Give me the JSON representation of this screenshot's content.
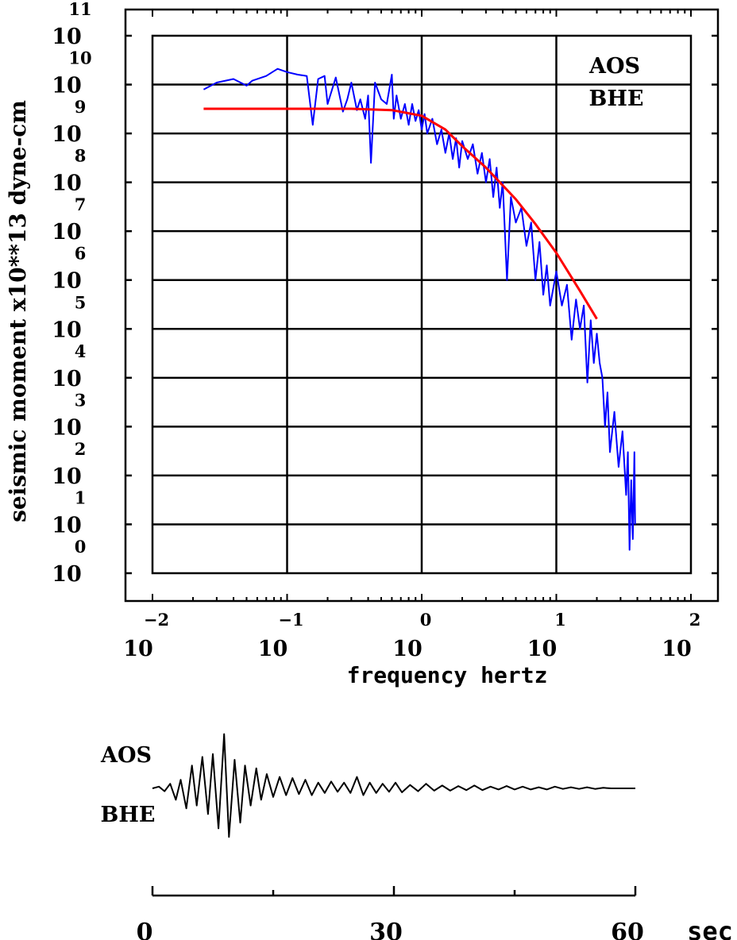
{
  "chart_data": [
    {
      "type": "line",
      "title": "",
      "xlabel": "frequency  hertz",
      "ylabel": "seismic moment x10**13 dyne-cm",
      "x_scale": "log",
      "y_scale": "log",
      "xlim": [
        0.01,
        100
      ],
      "ylim": [
        1,
        100000000000
      ],
      "x_ticks": [
        {
          "base": "10",
          "exp": "−2"
        },
        {
          "base": "10",
          "exp": "−1"
        },
        {
          "base": "10",
          "exp": "0"
        },
        {
          "base": "10",
          "exp": "1"
        },
        {
          "base": "10",
          "exp": "2"
        }
      ],
      "y_ticks": [
        {
          "base": "10",
          "exp": "0"
        },
        {
          "base": "10",
          "exp": "1"
        },
        {
          "base": "10",
          "exp": "2"
        },
        {
          "base": "10",
          "exp": "3"
        },
        {
          "base": "10",
          "exp": "4"
        },
        {
          "base": "10",
          "exp": "5"
        },
        {
          "base": "10",
          "exp": "6"
        },
        {
          "base": "10",
          "exp": "7"
        },
        {
          "base": "10",
          "exp": "8"
        },
        {
          "base": "10",
          "exp": "9"
        },
        {
          "base": "10",
          "exp": "10"
        },
        {
          "base": "10",
          "exp": "11"
        }
      ],
      "grid": true,
      "annotations": [
        "AOS",
        "BHE"
      ],
      "series": [
        {
          "color": "#0000ff",
          "points": [
            [
              0.024,
              7900000000.0
            ],
            [
              0.03,
              11000000000.0
            ],
            [
              0.04,
              13000000000.0
            ],
            [
              0.05,
              9500000000.0
            ],
            [
              0.055,
              12000000000.0
            ],
            [
              0.07,
              15000000000.0
            ],
            [
              0.085,
              21000000000.0
            ],
            [
              0.1,
              18000000000.0
            ],
            [
              0.12,
              16000000000.0
            ],
            [
              0.14,
              15000000000.0
            ],
            [
              0.155,
              1500000000.0
            ],
            [
              0.17,
              13000000000.0
            ],
            [
              0.19,
              15000000000.0
            ],
            [
              0.2,
              4000000000.0
            ],
            [
              0.23,
              14000000000.0
            ],
            [
              0.26,
              2800000000.0
            ],
            [
              0.28,
              5000000000.0
            ],
            [
              0.3,
              11000000000.0
            ],
            [
              0.33,
              3000000000.0
            ],
            [
              0.35,
              5000000000.0
            ],
            [
              0.38,
              2000000000.0
            ],
            [
              0.4,
              6000000000.0
            ],
            [
              0.42,
              250000000.0
            ],
            [
              0.45,
              11000000000.0
            ],
            [
              0.5,
              5000000000.0
            ],
            [
              0.55,
              4000000000.0
            ],
            [
              0.6,
              16000000000.0
            ],
            [
              0.62,
              2000000000.0
            ],
            [
              0.65,
              6000000000.0
            ],
            [
              0.7,
              2000000000.0
            ],
            [
              0.75,
              4000000000.0
            ],
            [
              0.8,
              1500000000.0
            ],
            [
              0.85,
              4000000000.0
            ],
            [
              0.9,
              1800000000.0
            ],
            [
              0.95,
              3000000000.0
            ],
            [
              1.0,
              1200000000.0
            ],
            [
              1.05,
              2500000000.0
            ],
            [
              1.1,
              1000000000.0
            ],
            [
              1.2,
              2000000000.0
            ],
            [
              1.3,
              600000000.0
            ],
            [
              1.4,
              1200000000.0
            ],
            [
              1.5,
              400000000.0
            ],
            [
              1.6,
              1000000000.0
            ],
            [
              1.7,
              300000000.0
            ],
            [
              1.8,
              800000000.0
            ],
            [
              1.9,
              200000000.0
            ],
            [
              2.0,
              700000000.0
            ],
            [
              2.2,
              300000000.0
            ],
            [
              2.4,
              600000000.0
            ],
            [
              2.6,
              150000000.0
            ],
            [
              2.8,
              400000000.0
            ],
            [
              3.0,
              100000000.0
            ],
            [
              3.2,
              300000000.0
            ],
            [
              3.4,
              50000000.0
            ],
            [
              3.6,
              200000000.0
            ],
            [
              3.8,
              30000000.0
            ],
            [
              4.0,
              100000000.0
            ],
            [
              4.3,
              1000000.0
            ],
            [
              4.6,
              50000000.0
            ],
            [
              5.0,
              15000000.0
            ],
            [
              5.5,
              30000000.0
            ],
            [
              6.0,
              5000000.0
            ],
            [
              6.5,
              15000000.0
            ],
            [
              7.0,
              1000000.0
            ],
            [
              7.5,
              6000000.0
            ],
            [
              8.0,
              500000.0
            ],
            [
              8.5,
              2000000.0
            ],
            [
              9.0,
              300000.0
            ],
            [
              10.0,
              1500000.0
            ],
            [
              11.0,
              300000.0
            ],
            [
              12.0,
              800000.0
            ],
            [
              13.0,
              60000.0
            ],
            [
              14.0,
              400000.0
            ],
            [
              15.0,
              100000.0
            ],
            [
              16.0,
              300000.0
            ],
            [
              17.0,
              8000.0
            ],
            [
              18.0,
              150000.0
            ],
            [
              19.0,
              20000.0
            ],
            [
              20.0,
              80000.0
            ],
            [
              21.0,
              20000.0
            ],
            [
              22.0,
              10000.0
            ],
            [
              23.0,
              1000.0
            ],
            [
              24.0,
              5000.0
            ],
            [
              25.0,
              300.0
            ],
            [
              27.0,
              2000.0
            ],
            [
              29.0,
              150.0
            ],
            [
              31.0,
              800.0
            ],
            [
              33.0,
              40
            ],
            [
              34.0,
              300.0
            ],
            [
              35.0,
              3
            ],
            [
              36.0,
              80
            ],
            [
              37.0,
              5
            ],
            [
              38.0,
              300.0
            ],
            [
              38.5,
              10
            ]
          ]
        },
        {
          "color": "#ff0000",
          "points": [
            [
              0.024,
              3200000000.0
            ],
            [
              0.1,
              3200000000.0
            ],
            [
              0.3,
              3200000000.0
            ],
            [
              0.6,
              3000000000.0
            ],
            [
              1.0,
              2300000000.0
            ],
            [
              1.5,
              1200000000.0
            ],
            [
              2.0,
              550000000.0
            ],
            [
              3.0,
              200000000.0
            ],
            [
              5.0,
              45000000.0
            ],
            [
              7.0,
              14000000.0
            ],
            [
              10.0,
              3600000.0
            ],
            [
              15.0,
              600000.0
            ],
            [
              20.0,
              160000.0
            ]
          ]
        }
      ]
    },
    {
      "type": "line",
      "title": "",
      "xlabel": "sec",
      "labels": [
        "AOS",
        "BHE"
      ],
      "xlim": [
        0,
        60
      ],
      "x_tick_labels": [
        "0",
        "30",
        "60"
      ],
      "x": [
        0,
        0.8,
        1.5,
        2.2,
        2.9,
        3.5,
        4.2,
        4.9,
        5.5,
        6.2,
        6.9,
        7.5,
        8.2,
        8.9,
        9.5,
        10.2,
        10.9,
        11.5,
        12.2,
        12.9,
        13.5,
        14.2,
        15.0,
        15.8,
        16.6,
        17.4,
        18.2,
        19.0,
        19.8,
        20.6,
        21.4,
        22.2,
        23.0,
        23.8,
        24.6,
        25.4,
        26.2,
        27.0,
        27.8,
        28.6,
        29.4,
        30.2,
        31.0,
        32.0,
        33.0,
        34.0,
        35.0,
        36.0,
        37.0,
        38.0,
        39.0,
        40.0,
        41.0,
        42.0,
        43.0,
        44.0,
        45.0,
        46.0,
        47.0,
        48.0,
        49.0,
        50.0,
        51.0,
        52.0,
        53.0,
        54.0,
        55.0,
        56.0,
        57.0,
        58.0,
        59.0,
        60.0
      ],
      "y": [
        0,
        0.03,
        -0.05,
        0.08,
        -0.2,
        0.15,
        -0.35,
        0.4,
        -0.3,
        0.55,
        -0.45,
        0.6,
        -0.7,
        0.95,
        -0.85,
        0.5,
        -0.6,
        0.4,
        -0.3,
        0.35,
        -0.2,
        0.25,
        -0.15,
        0.2,
        -0.12,
        0.18,
        -0.1,
        0.15,
        -0.12,
        0.1,
        -0.08,
        0.12,
        -0.06,
        0.1,
        -0.08,
        0.2,
        -0.12,
        0.1,
        -0.08,
        0.08,
        -0.06,
        0.1,
        -0.07,
        0.06,
        -0.05,
        0.08,
        -0.04,
        0.05,
        -0.04,
        0.04,
        -0.03,
        0.05,
        -0.03,
        0.03,
        -0.02,
        0.04,
        -0.02,
        0.03,
        -0.02,
        0.02,
        -0.02,
        0.03,
        -0.01,
        0.02,
        -0.01,
        0.02,
        -0.01,
        0.01,
        0,
        0,
        0,
        0
      ],
      "color": "#000000"
    }
  ]
}
